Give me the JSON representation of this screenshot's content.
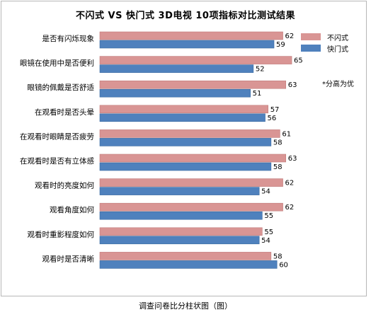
{
  "chart_data": {
    "type": "bar",
    "orientation": "horizontal",
    "title": "不闪式 VS 快门式 3D电视 10项指标对比测试结果",
    "caption": "调查问卷比分柱状图（图）",
    "note": "*分高为优",
    "categories": [
      "是否有闪烁现象",
      "眼镜在使用中是否便利",
      "眼镜的佩戴是否舒适",
      "在观看时是否头晕",
      "在观看时眼睛是否疲劳",
      "在观看时是否有立体感",
      "观看时的亮度如何",
      "观看角度如何",
      "观看时重影程度如何",
      "观看时是否清晰"
    ],
    "series": [
      {
        "name": "不闪式",
        "color": "#d99594",
        "values": [
          62,
          65,
          63,
          57,
          61,
          63,
          62,
          62,
          55,
          58
        ]
      },
      {
        "name": "快门式",
        "color": "#4f81bd",
        "values": [
          59,
          52,
          51,
          56,
          58,
          58,
          54,
          55,
          54,
          60
        ]
      }
    ],
    "legend_position": "top-right",
    "grid": false
  }
}
